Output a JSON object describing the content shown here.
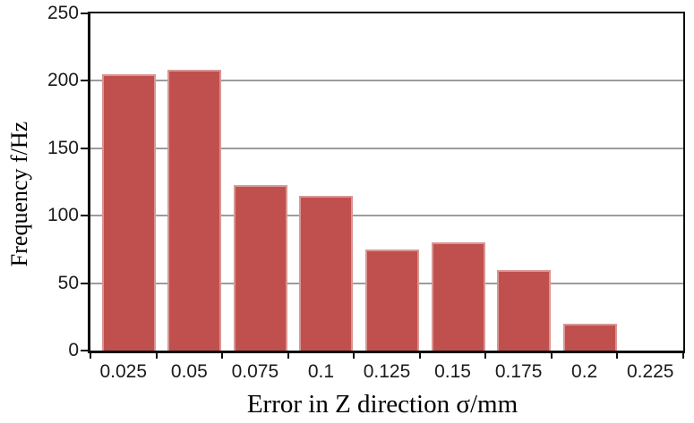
{
  "chart_data": {
    "type": "bar",
    "title": "",
    "categories": [
      "0.025",
      "0.05",
      "0.075",
      "0.1",
      "0.125",
      "0.15",
      "0.175",
      "0.2",
      "0.225"
    ],
    "values": [
      205,
      208,
      123,
      115,
      75,
      80,
      60,
      20,
      0
    ],
    "xlabel": "Error in Z direction σ/mm",
    "ylabel": "Frequency f/Hz",
    "ylim": [
      0,
      250
    ],
    "yticks": [
      0,
      50,
      100,
      150,
      200,
      250
    ],
    "grid": true,
    "legend": false,
    "bar_color": "#c0504d",
    "bar_border_color": "#d99694",
    "gridline_color": "#9c9c9c",
    "axis_color": "#0d0d0d",
    "tick_label_color": "#1a1a1a"
  }
}
